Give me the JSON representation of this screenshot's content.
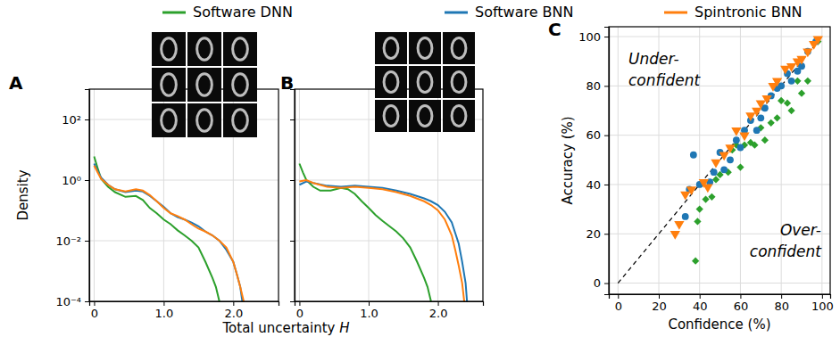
{
  "chart_data": [
    {
      "type": "line",
      "title": "A",
      "x_label": "Total uncertainty H",
      "y_label": "Density",
      "legend": "top",
      "log": "y",
      "grid": true,
      "xlim": [
        -0.07,
        2.65
      ],
      "ylim": [
        0.0001,
        1000
      ],
      "xticks": [
        0,
        {
          "value": 1,
          "label": "1.0"
        },
        {
          "value": 2,
          "label": "2.0"
        }
      ],
      "yticks": [
        {
          "value": 0.0001,
          "label": "10⁻⁴"
        },
        {
          "value": 0.01,
          "label": "10⁻²"
        },
        {
          "value": 1,
          "label": "10⁰"
        },
        {
          "value": 100,
          "label": "10²"
        }
      ],
      "series": [
        {
          "name": "Software DNN",
          "color": "#2ca02c",
          "x": [
            0,
            0.05,
            0.1,
            0.2,
            0.3,
            0.45,
            0.6,
            0.7,
            0.8,
            0.9,
            1.0,
            1.1,
            1.2,
            1.3,
            1.4,
            1.5,
            1.6,
            1.7,
            1.75,
            1.8
          ],
          "values": [
            6,
            2.5,
            1.1,
            0.6,
            0.4,
            0.28,
            0.3,
            0.22,
            0.12,
            0.08,
            0.05,
            0.035,
            0.022,
            0.015,
            0.01,
            0.006,
            0.002,
            0.0006,
            0.0003,
            0.0001
          ]
        },
        {
          "name": "Software BNN",
          "color": "#1f77b4",
          "x": [
            0,
            0.05,
            0.1,
            0.2,
            0.3,
            0.45,
            0.6,
            0.7,
            0.8,
            0.9,
            1.0,
            1.1,
            1.2,
            1.3,
            1.4,
            1.5,
            1.6,
            1.7,
            1.8,
            1.9,
            2.0,
            2.05,
            2.1,
            2.13
          ],
          "values": [
            3.5,
            2,
            1.2,
            0.7,
            0.5,
            0.4,
            0.45,
            0.42,
            0.3,
            0.2,
            0.13,
            0.08,
            0.06,
            0.05,
            0.04,
            0.03,
            0.02,
            0.015,
            0.01,
            0.005,
            0.002,
            0.0008,
            0.0003,
            0.0001
          ]
        },
        {
          "name": "Spintronic BNN",
          "color": "#ff7f0e",
          "x": [
            0,
            0.05,
            0.1,
            0.2,
            0.3,
            0.45,
            0.6,
            0.7,
            0.8,
            0.9,
            1.0,
            1.1,
            1.2,
            1.3,
            1.4,
            1.5,
            1.6,
            1.7,
            1.8,
            1.9,
            2.0,
            2.05,
            2.1,
            2.15
          ],
          "values": [
            3,
            1.8,
            1.1,
            0.7,
            0.5,
            0.42,
            0.5,
            0.45,
            0.32,
            0.2,
            0.12,
            0.08,
            0.065,
            0.05,
            0.035,
            0.025,
            0.02,
            0.015,
            0.01,
            0.006,
            0.002,
            0.0008,
            0.0003,
            0.0001
          ]
        }
      ]
    },
    {
      "type": "line",
      "title": "B",
      "log": "y",
      "grid": true,
      "tick_labels": "x",
      "xlim": [
        -0.07,
        2.65
      ],
      "ylim": [
        0.0001,
        1000
      ],
      "xticks": [
        0,
        {
          "value": 1,
          "label": "1.0"
        },
        {
          "value": 2,
          "label": "2.0"
        }
      ],
      "yticks": [
        0.0001,
        0.01,
        1,
        100
      ],
      "series": [
        {
          "color": "#2ca02c",
          "x": [
            0,
            0.05,
            0.1,
            0.2,
            0.3,
            0.45,
            0.6,
            0.7,
            0.8,
            0.9,
            1.0,
            1.1,
            1.2,
            1.3,
            1.4,
            1.5,
            1.6,
            1.7,
            1.8,
            1.85,
            1.9
          ],
          "values": [
            3.5,
            1.8,
            1.0,
            0.6,
            0.45,
            0.45,
            0.55,
            0.5,
            0.35,
            0.2,
            0.12,
            0.07,
            0.045,
            0.03,
            0.02,
            0.012,
            0.006,
            0.002,
            0.0006,
            0.0003,
            0.0001
          ]
        },
        {
          "color": "#1f77b4",
          "x": [
            0,
            0.1,
            0.2,
            0.4,
            0.6,
            0.8,
            1.0,
            1.2,
            1.4,
            1.6,
            1.8,
            1.9,
            2.0,
            2.1,
            2.2,
            2.3,
            2.35,
            2.4,
            2.42
          ],
          "values": [
            0.7,
            0.9,
            0.8,
            0.65,
            0.6,
            0.65,
            0.6,
            0.55,
            0.45,
            0.35,
            0.25,
            0.2,
            0.15,
            0.09,
            0.04,
            0.008,
            0.002,
            0.0004,
            0.0001
          ]
        },
        {
          "color": "#ff7f0e",
          "x": [
            0,
            0.1,
            0.2,
            0.4,
            0.6,
            0.8,
            1.0,
            1.2,
            1.4,
            1.6,
            1.8,
            1.9,
            2.0,
            2.1,
            2.2,
            2.25,
            2.3,
            2.35,
            2.38
          ],
          "values": [
            0.9,
            1.0,
            0.8,
            0.6,
            0.55,
            0.6,
            0.55,
            0.5,
            0.4,
            0.3,
            0.2,
            0.15,
            0.1,
            0.05,
            0.015,
            0.005,
            0.0015,
            0.0004,
            0.0001
          ]
        }
      ]
    },
    {
      "type": "scatter",
      "title": "C",
      "x_label": "Confidence (%)",
      "y_label": "Accuracy (%)",
      "grid": true,
      "xlim": [
        -4.5,
        104
      ],
      "ylim": [
        -4.5,
        104
      ],
      "xticks": [
        0,
        20,
        40,
        60,
        80,
        100
      ],
      "yticks": [
        0,
        20,
        40,
        60,
        80,
        100
      ],
      "annotations": [
        "Under-\nconfident",
        "Over-\nconfident"
      ],
      "series": [
        {
          "type": "line",
          "color": "#000000",
          "line_style": "dashed",
          "x": [
            0,
            100
          ],
          "values": [
            0,
            100
          ]
        },
        {
          "color": "#2ca02c",
          "marker": "diamond",
          "x": [
            38,
            39,
            40,
            43,
            46,
            48,
            50,
            54,
            56,
            58,
            60,
            62,
            65,
            67,
            70,
            72,
            75,
            78,
            80,
            83,
            85,
            88,
            90,
            93,
            98
          ],
          "values": [
            9,
            25,
            30,
            34,
            35,
            42,
            44,
            45,
            54,
            56,
            47,
            56,
            57,
            56,
            63,
            58,
            65,
            67,
            74,
            73,
            70,
            82,
            77,
            82,
            98
          ]
        },
        {
          "color": "#1f77b4",
          "marker": "circle",
          "x": [
            33,
            35,
            37,
            40,
            45,
            47,
            50,
            52,
            55,
            58,
            60,
            62,
            65,
            68,
            70,
            72,
            75,
            78,
            80,
            83,
            85,
            88,
            90,
            93,
            97
          ],
          "values": [
            27,
            38,
            52,
            40,
            41,
            45,
            53,
            46,
            50,
            58,
            55,
            62,
            66,
            62,
            67,
            71,
            76,
            79,
            80,
            85,
            82,
            86,
            88,
            94,
            98
          ]
        },
        {
          "color": "#ff7f0e",
          "marker": "triangle-down",
          "x": [
            28,
            30,
            33,
            36,
            42,
            44,
            48,
            52,
            55,
            58,
            62,
            65,
            68,
            70,
            73,
            76,
            78,
            82,
            85,
            88,
            90,
            93,
            96,
            98
          ],
          "values": [
            20,
            24,
            36,
            38,
            41,
            39,
            49,
            52,
            55,
            62,
            60,
            68,
            70,
            73,
            75,
            80,
            82,
            87,
            88,
            90,
            91,
            94,
            97,
            99
          ]
        }
      ]
    }
  ]
}
